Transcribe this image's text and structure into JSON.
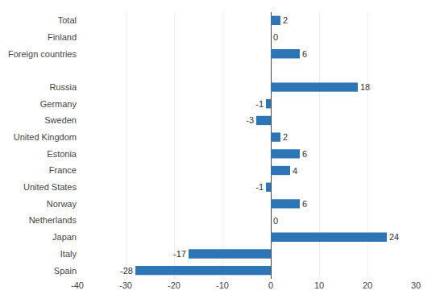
{
  "chart_data": {
    "type": "bar",
    "orientation": "horizontal",
    "categories": [
      "Spain",
      "Italy",
      "Japan",
      "Netherlands",
      "Norway",
      "United States",
      "France",
      "Estonia",
      "United Kingdom",
      "Sweden",
      "Germany",
      "Russia",
      null,
      "Foreign countries",
      "Finland",
      "Total"
    ],
    "values": [
      -28,
      -17,
      24,
      0,
      6,
      -1,
      4,
      6,
      2,
      -3,
      -1,
      18,
      null,
      6,
      0,
      2
    ],
    "color": "#2E75B6",
    "xlim": [
      -40,
      30
    ],
    "xticks": [
      -40,
      -30,
      -20,
      -10,
      0,
      10,
      20,
      30
    ],
    "grid": true,
    "data_labels": true
  }
}
